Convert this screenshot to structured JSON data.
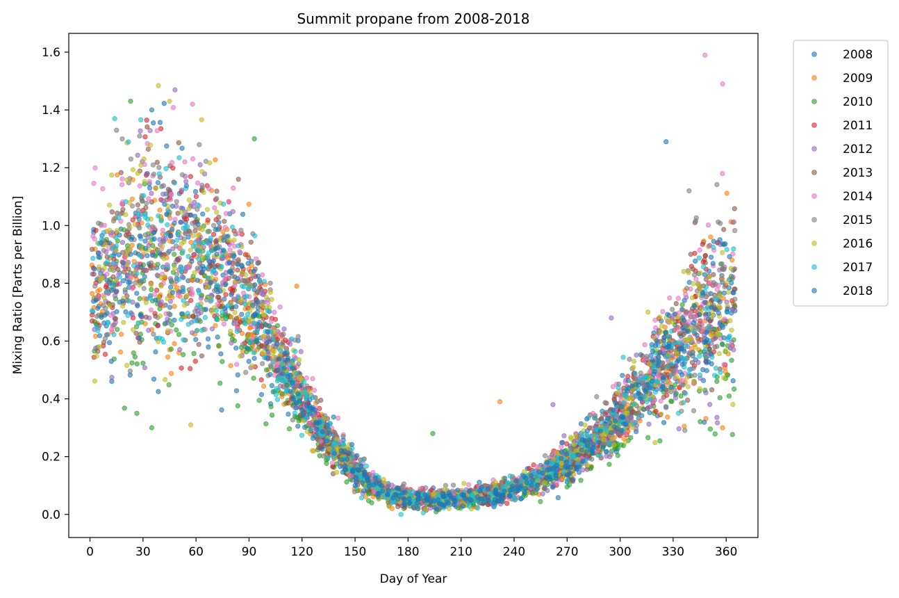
{
  "chart_data": {
    "type": "scatter",
    "title": "Summit propane from 2008-2018",
    "xlabel": "Day of Year",
    "ylabel": "Mixing Ratio [Parts per Billion]",
    "xlim": [
      -12,
      378
    ],
    "ylim": [
      -0.08,
      1.665
    ],
    "xticks": [
      0,
      30,
      60,
      90,
      120,
      150,
      180,
      210,
      240,
      270,
      300,
      330,
      360
    ],
    "yticks": [
      0.0,
      0.2,
      0.4,
      0.6,
      0.8,
      1.0,
      1.2,
      1.4,
      1.6
    ],
    "ytick_labels": [
      "0.0",
      "0.2",
      "0.4",
      "0.6",
      "0.8",
      "1.0",
      "1.2",
      "1.4",
      "1.6"
    ],
    "grid": false,
    "legend_position": "outside-top-right",
    "marker": "circle",
    "alpha": 0.6,
    "seasonal_profile": {
      "day": [
        0,
        15,
        30,
        45,
        60,
        75,
        90,
        100,
        110,
        120,
        130,
        140,
        150,
        160,
        170,
        180,
        195,
        210,
        225,
        240,
        255,
        270,
        285,
        300,
        315,
        330,
        345,
        365
      ],
      "mean": [
        0.76,
        0.86,
        0.9,
        0.9,
        0.88,
        0.84,
        0.74,
        0.62,
        0.5,
        0.4,
        0.3,
        0.22,
        0.15,
        0.1,
        0.07,
        0.055,
        0.05,
        0.052,
        0.065,
        0.09,
        0.13,
        0.18,
        0.25,
        0.33,
        0.45,
        0.56,
        0.66,
        0.73
      ],
      "spread": [
        0.13,
        0.17,
        0.19,
        0.18,
        0.16,
        0.14,
        0.12,
        0.09,
        0.06,
        0.05,
        0.04,
        0.035,
        0.03,
        0.022,
        0.018,
        0.015,
        0.015,
        0.015,
        0.018,
        0.022,
        0.025,
        0.03,
        0.04,
        0.05,
        0.07,
        0.1,
        0.14,
        0.16
      ]
    },
    "series": [
      {
        "name": "2008",
        "color": "#1f77b4",
        "sample_points": [
          [
            5,
            0.72
          ],
          [
            40,
            0.9
          ],
          [
            180,
            0.05
          ],
          [
            320,
            0.52
          ]
        ]
      },
      {
        "name": "2009",
        "color": "#ff7f0e",
        "sample_points": [
          [
            20,
            0.85
          ],
          [
            117,
            0.79
          ],
          [
            232,
            0.39
          ],
          [
            358,
            0.3
          ]
        ]
      },
      {
        "name": "2010",
        "color": "#2ca02c",
        "sample_points": [
          [
            23,
            1.43
          ],
          [
            35,
            0.3
          ],
          [
            93,
            1.3
          ],
          [
            194,
            0.28
          ]
        ]
      },
      {
        "name": "2011",
        "color": "#d62728",
        "sample_points": [
          [
            50,
            0.88
          ],
          [
            200,
            0.06
          ],
          [
            330,
            0.6
          ]
        ]
      },
      {
        "name": "2012",
        "color": "#9467bd",
        "sample_points": [
          [
            262,
            0.38
          ],
          [
            295,
            0.68
          ],
          [
            350,
            0.55
          ]
        ]
      },
      {
        "name": "2013",
        "color": "#8c564b",
        "sample_points": [
          [
            84,
            1.16
          ],
          [
            340,
            0.9
          ],
          [
            365,
            0.78
          ]
        ]
      },
      {
        "name": "2014",
        "color": "#e377c2",
        "sample_points": [
          [
            58,
            1.42
          ],
          [
            348,
            1.59
          ],
          [
            358,
            1.49
          ]
        ]
      },
      {
        "name": "2015",
        "color": "#7f7f7f",
        "sample_points": [
          [
            15,
            1.33
          ],
          [
            70,
            1.0
          ],
          [
            339,
            1.12
          ]
        ]
      },
      {
        "name": "2016",
        "color": "#bcbd22",
        "sample_points": [
          [
            45,
            1.43
          ],
          [
            57,
            0.31
          ],
          [
            270,
            0.15
          ]
        ]
      },
      {
        "name": "2017",
        "color": "#17becf",
        "sample_points": [
          [
            14,
            1.37
          ],
          [
            176,
            0.0
          ],
          [
            333,
            0.35
          ]
        ]
      },
      {
        "name": "2018",
        "color": "#1f77b4",
        "sample_points": [
          [
            35,
            1.4
          ],
          [
            326,
            1.29
          ],
          [
            150,
            0.1
          ]
        ]
      }
    ]
  }
}
